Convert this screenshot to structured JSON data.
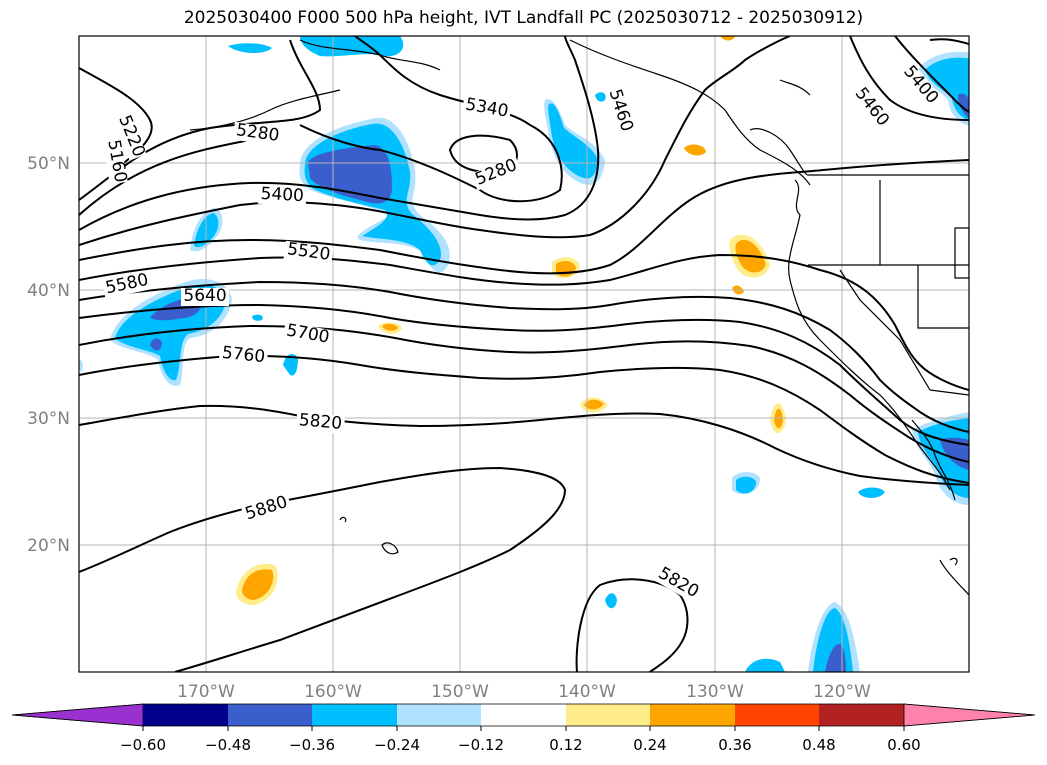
{
  "title": "2025030400 F000 500 hPa height, IVT Landfall PC (2025030712 - 2025030912)",
  "lat_labels": [
    "50°N",
    "40°N",
    "30°N",
    "20°N"
  ],
  "lon_labels": [
    "170°W",
    "160°W",
    "150°W",
    "140°W",
    "130°W",
    "120°W"
  ],
  "contour_labels": [
    "5220",
    "5160",
    "5280",
    "5340",
    "5280",
    "5460",
    "5460",
    "5400",
    "5400",
    "5520",
    "5580",
    "5640",
    "5700",
    "5760",
    "5820",
    "5880",
    "5820"
  ],
  "colorbar": {
    "ticks": [
      "−0.60",
      "−0.48",
      "−0.36",
      "−0.24",
      "−0.12",
      "0.12",
      "0.24",
      "0.36",
      "0.48",
      "0.60"
    ],
    "colors": [
      "#9b30d0",
      "#00008b",
      "#3a5fcd",
      "#00bfff",
      "#b0e2ff",
      "#ffffff",
      "#ffec8b",
      "#ffa500",
      "#ff4500",
      "#b22222",
      "#ff82ab"
    ]
  },
  "chart_data": {
    "type": "map",
    "title": "2025030400 F000 500 hPa height, IVT Landfall PC (2025030712 - 2025030912)",
    "extent": {
      "lon": [
        -180,
        -110
      ],
      "lat": [
        10,
        60
      ]
    },
    "gridlines": true,
    "contour_field": "500 hPa height",
    "contour_levels_labeled": [
      5160,
      5220,
      5280,
      5340,
      5400,
      5460,
      5520,
      5580,
      5640,
      5700,
      5760,
      5820,
      5880
    ],
    "shading_field": "IVT Landfall PC",
    "shading_levels": [
      -0.6,
      -0.48,
      -0.36,
      -0.24,
      -0.12,
      0.12,
      0.24,
      0.36,
      0.48,
      0.6
    ]
  }
}
